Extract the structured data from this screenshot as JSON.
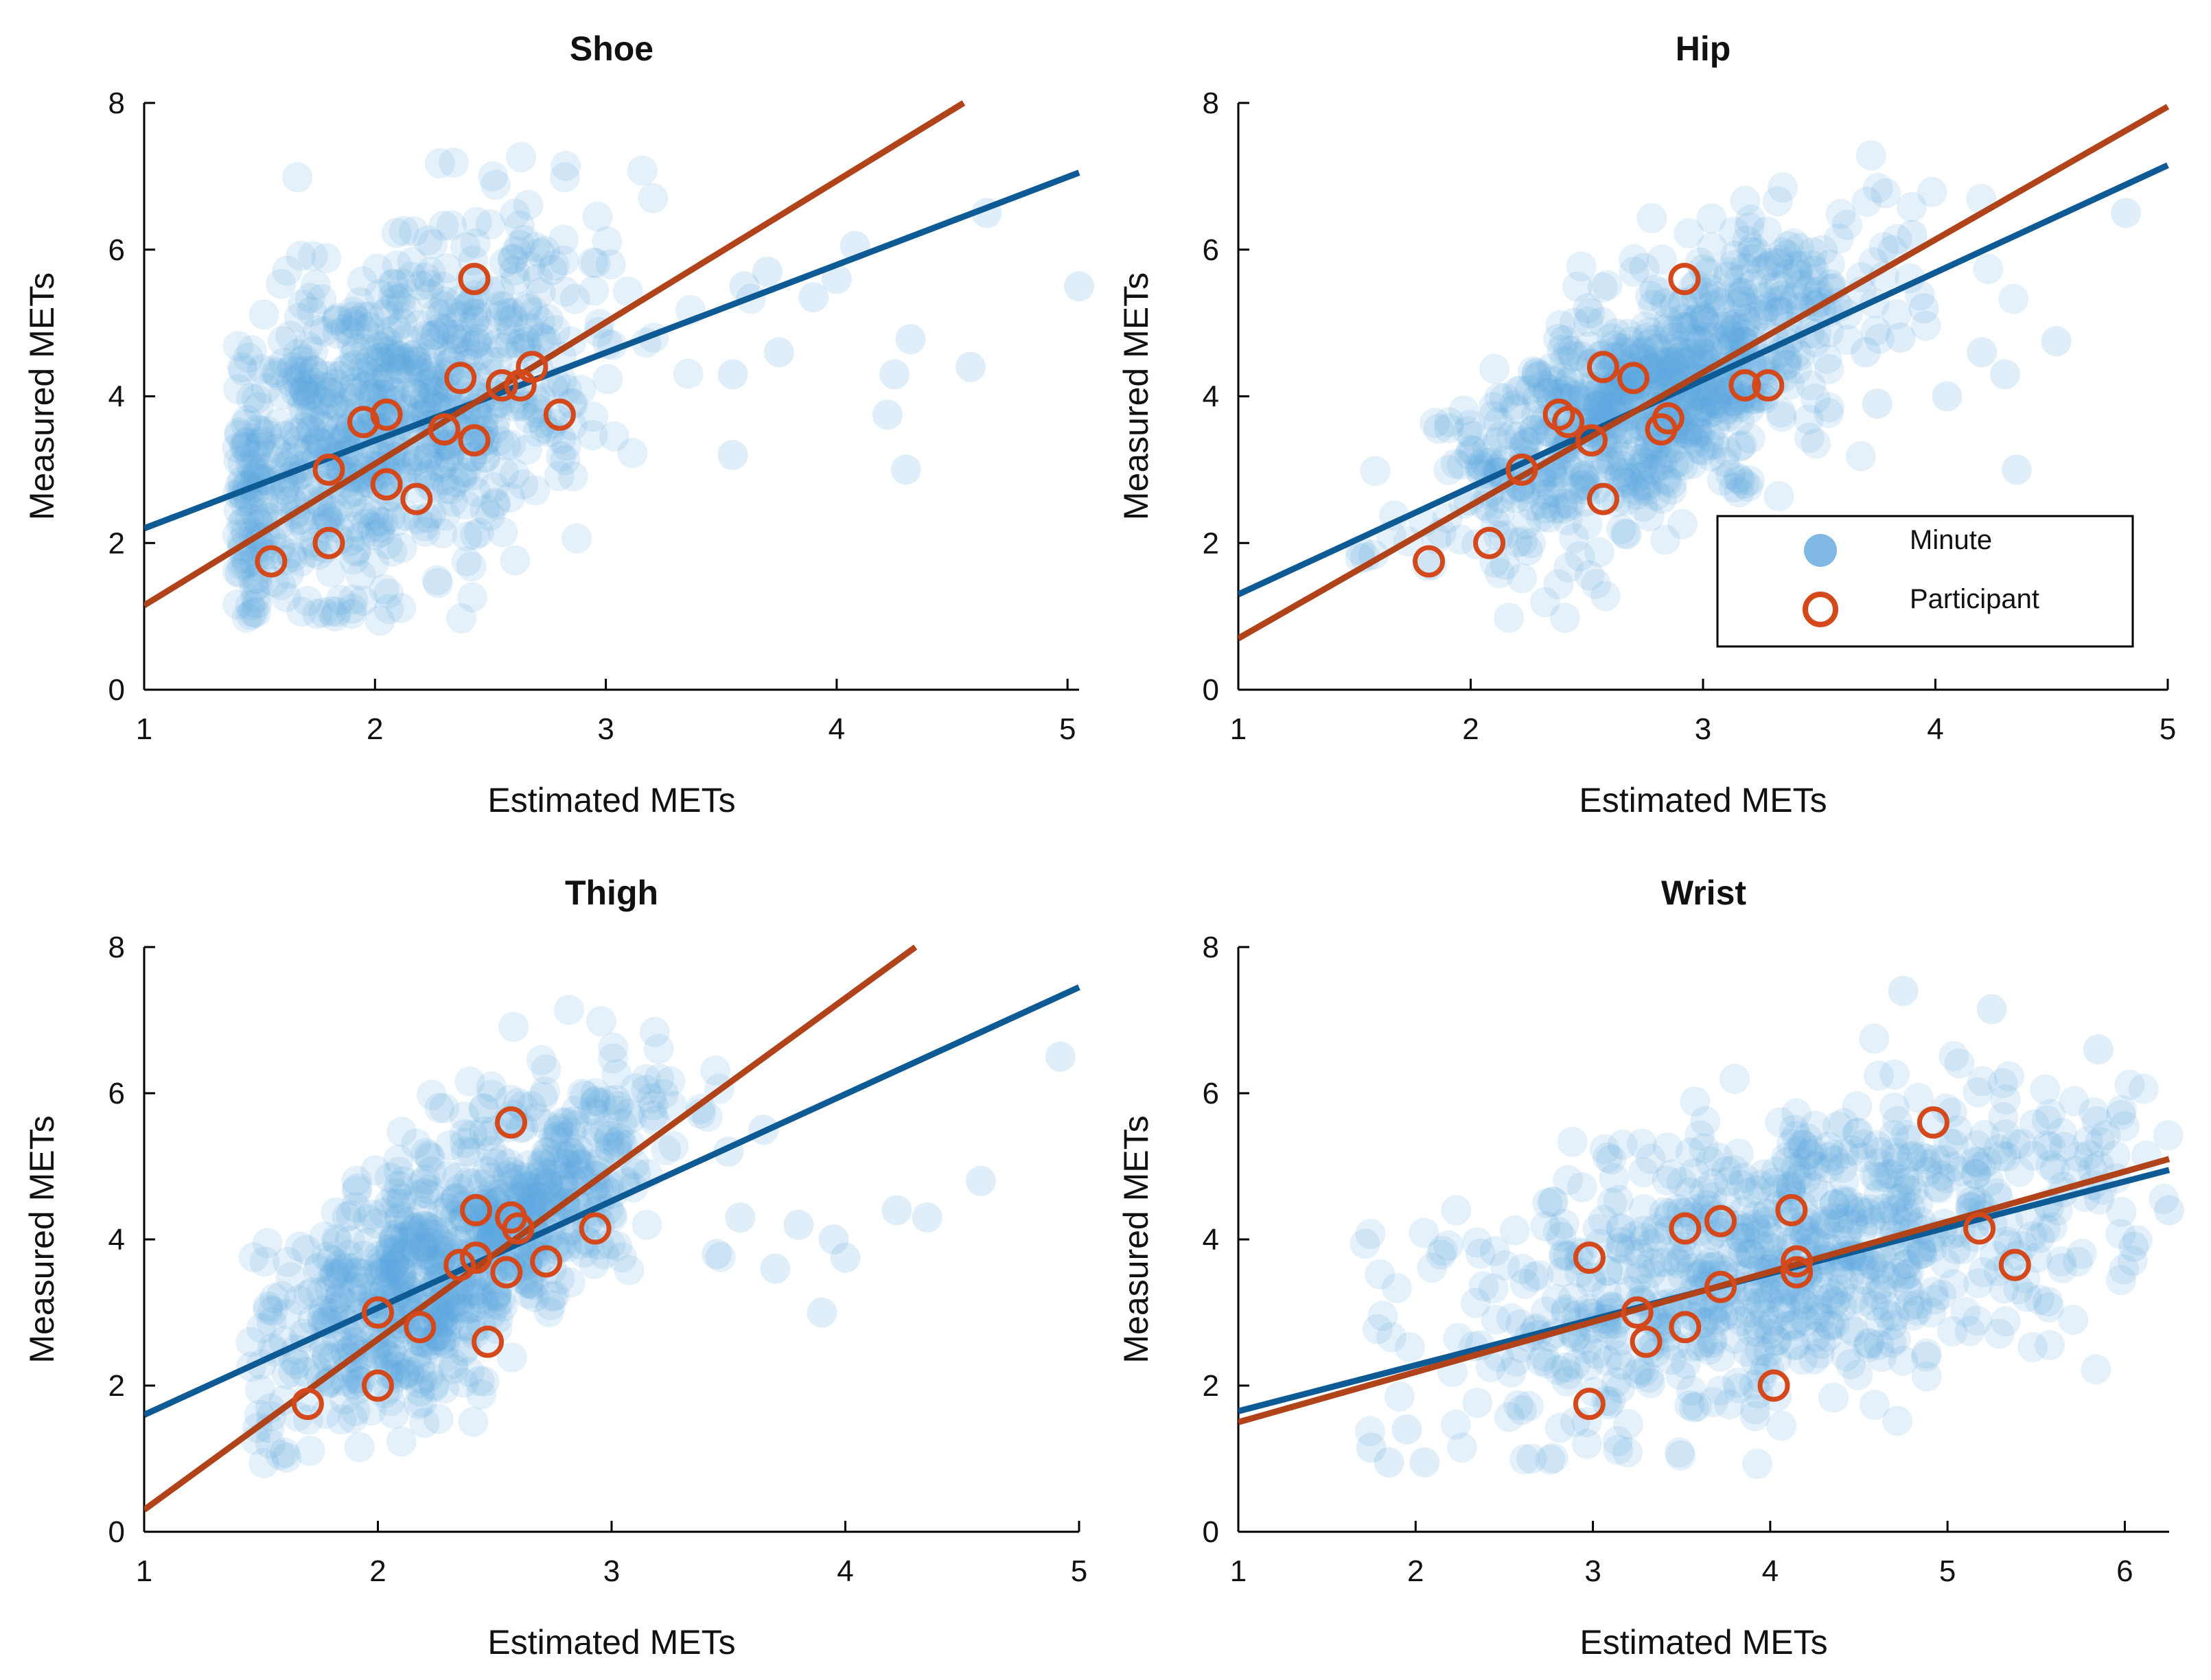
{
  "chart_data": [
    {
      "type": "scatter",
      "title": "Shoe",
      "xlabel": "Estimated METs",
      "ylabel": "Measured METs",
      "xlim": [
        1,
        5.05
      ],
      "ylim": [
        0,
        8
      ],
      "xticks": [
        1,
        2,
        3,
        4,
        5
      ],
      "yticks": [
        0,
        2,
        4,
        6,
        8
      ],
      "xtick_labels": [
        "1",
        "2",
        "3",
        "4",
        "5"
      ],
      "ytick_labels": [
        "0",
        "2",
        "4",
        "6",
        "8"
      ],
      "grid": false,
      "cloud": {
        "cx": 2.05,
        "cy": 3.7,
        "sx": 0.45,
        "sy": 1.15,
        "slope": 1.2,
        "n": 820,
        "xmin": 1.4,
        "seed": 11
      },
      "outliers": [
        [
          4.65,
          6.5
        ],
        [
          4.58,
          4.4
        ],
        [
          4.25,
          4.3
        ],
        [
          4.3,
          3.0
        ],
        [
          4.22,
          3.75
        ],
        [
          4.32,
          4.78
        ],
        [
          4.08,
          6.05
        ],
        [
          4.0,
          5.6
        ],
        [
          5.05,
          5.5
        ],
        [
          3.7,
          5.7
        ],
        [
          3.55,
          4.3
        ],
        [
          3.6,
          5.5
        ],
        [
          3.55,
          3.2
        ],
        [
          3.75,
          4.6
        ],
        [
          3.9,
          5.35
        ]
      ],
      "series": [
        {
          "name": "Minute fit",
          "line": [
            [
              1,
              2.2
            ],
            [
              5.05,
              7.05
            ]
          ]
        },
        {
          "name": "Participant fit",
          "line": [
            [
              1,
              1.15
            ],
            [
              4.55,
              8.0
            ]
          ]
        },
        {
          "name": "Participant",
          "points": [
            [
              1.55,
              1.75
            ],
            [
              1.8,
              2.0
            ],
            [
              1.8,
              3.0
            ],
            [
              1.95,
              3.65
            ],
            [
              2.05,
              3.75
            ],
            [
              2.05,
              2.8
            ],
            [
              2.18,
              2.6
            ],
            [
              2.3,
              3.55
            ],
            [
              2.37,
              4.25
            ],
            [
              2.43,
              3.4
            ],
            [
              2.43,
              5.6
            ],
            [
              2.55,
              4.15
            ],
            [
              2.63,
              4.15
            ],
            [
              2.68,
              4.4
            ],
            [
              2.8,
              3.75
            ]
          ]
        }
      ]
    },
    {
      "type": "scatter",
      "title": "Hip",
      "xlabel": "Estimated METs",
      "ylabel": "Measured METs",
      "xlim": [
        1,
        5
      ],
      "ylim": [
        0,
        8
      ],
      "xticks": [
        1,
        2,
        3,
        4,
        5
      ],
      "yticks": [
        0,
        2,
        4,
        6,
        8
      ],
      "xtick_labels": [
        "1",
        "2",
        "3",
        "4",
        "5"
      ],
      "ytick_labels": [
        "0",
        "2",
        "4",
        "6",
        "8"
      ],
      "grid": false,
      "cloud": {
        "cx": 2.8,
        "cy": 4.0,
        "sx": 0.45,
        "sy": 0.8,
        "slope": 1.6,
        "n": 820,
        "xmin": 1.5,
        "seed": 23
      },
      "outliers": [
        [
          4.82,
          6.5
        ],
        [
          4.52,
          4.75
        ],
        [
          4.35,
          3.0
        ],
        [
          4.3,
          4.3
        ],
        [
          4.2,
          4.6
        ],
        [
          4.05,
          4.0
        ],
        [
          3.95,
          5.2
        ],
        [
          3.85,
          4.8
        ],
        [
          3.7,
          4.6
        ],
        [
          3.75,
          3.9
        ],
        [
          3.9,
          6.2
        ]
      ],
      "series": [
        {
          "name": "Minute fit",
          "line": [
            [
              1,
              1.3
            ],
            [
              5,
              7.15
            ]
          ]
        },
        {
          "name": "Participant fit",
          "line": [
            [
              1,
              0.7
            ],
            [
              5,
              7.95
            ]
          ]
        },
        {
          "name": "Participant",
          "points": [
            [
              1.82,
              1.75
            ],
            [
              2.08,
              2.0
            ],
            [
              2.22,
              3.0
            ],
            [
              2.38,
              3.75
            ],
            [
              2.42,
              3.65
            ],
            [
              2.52,
              3.4
            ],
            [
              2.57,
              2.6
            ],
            [
              2.57,
              4.4
            ],
            [
              2.7,
              4.25
            ],
            [
              2.82,
              3.55
            ],
            [
              2.85,
              3.7
            ],
            [
              2.92,
              5.6
            ],
            [
              3.18,
              4.15
            ],
            [
              3.28,
              4.15
            ]
          ]
        }
      ],
      "legend": {
        "position": "bottom-right",
        "entries": [
          "Minute",
          "Participant"
        ]
      }
    },
    {
      "type": "scatter",
      "title": "Thigh",
      "xlabel": "Estimated METs",
      "ylabel": "Measured METs",
      "xlim": [
        1,
        5
      ],
      "ylim": [
        0,
        8
      ],
      "xticks": [
        1,
        2,
        3,
        4,
        5
      ],
      "yticks": [
        0,
        2,
        4,
        6,
        8
      ],
      "xtick_labels": [
        "1",
        "2",
        "3",
        "4",
        "5"
      ],
      "ytick_labels": [
        "0",
        "2",
        "4",
        "6",
        "8"
      ],
      "grid": false,
      "cloud": {
        "cx": 2.35,
        "cy": 3.9,
        "sx": 0.4,
        "sy": 0.85,
        "slope": 1.9,
        "n": 820,
        "xmin": 1.45,
        "seed": 37
      },
      "outliers": [
        [
          4.92,
          6.5
        ],
        [
          4.58,
          4.8
        ],
        [
          4.35,
          4.3
        ],
        [
          4.22,
          4.4
        ],
        [
          4.0,
          3.75
        ],
        [
          3.95,
          4.0
        ],
        [
          3.9,
          3.0
        ],
        [
          3.8,
          4.2
        ],
        [
          3.7,
          3.6
        ],
        [
          3.65,
          5.5
        ],
        [
          3.55,
          4.3
        ],
        [
          3.45,
          3.8
        ],
        [
          3.5,
          5.2
        ]
      ],
      "series": [
        {
          "name": "Minute fit",
          "line": [
            [
              1,
              1.6
            ],
            [
              5,
              7.45
            ]
          ]
        },
        {
          "name": "Participant fit",
          "line": [
            [
              1,
              0.3
            ],
            [
              4.3,
              8.0
            ]
          ]
        },
        {
          "name": "Participant",
          "points": [
            [
              1.7,
              1.75
            ],
            [
              2.0,
              2.0
            ],
            [
              2.0,
              3.0
            ],
            [
              2.18,
              2.8
            ],
            [
              2.35,
              3.65
            ],
            [
              2.42,
              3.75
            ],
            [
              2.42,
              4.4
            ],
            [
              2.47,
              2.6
            ],
            [
              2.55,
              3.55
            ],
            [
              2.57,
              4.3
            ],
            [
              2.6,
              4.15
            ],
            [
              2.57,
              5.6
            ],
            [
              2.72,
              3.7
            ],
            [
              2.93,
              4.15
            ]
          ]
        }
      ]
    },
    {
      "type": "scatter",
      "title": "Wrist",
      "xlabel": "Estimated METs",
      "ylabel": "Measured METs",
      "xlim": [
        1,
        6.25
      ],
      "ylim": [
        0,
        8
      ],
      "xticks": [
        1,
        2,
        3,
        4,
        5,
        6
      ],
      "yticks": [
        0,
        2,
        4,
        6,
        8
      ],
      "xtick_labels": [
        "1",
        "2",
        "3",
        "4",
        "5",
        "6"
      ],
      "ytick_labels": [
        "0",
        "2",
        "4",
        "6",
        "8"
      ],
      "grid": false,
      "cloud": {
        "cx": 4.1,
        "cy": 3.8,
        "sx": 0.95,
        "sy": 1.0,
        "slope": 0.55,
        "n": 820,
        "xmin": 1.7,
        "seed": 51
      },
      "outliers": [
        [
          1.75,
          1.15
        ],
        [
          1.85,
          0.95
        ],
        [
          1.95,
          1.4
        ],
        [
          2.05,
          0.95
        ],
        [
          6.25,
          4.4
        ],
        [
          6.05,
          3.9
        ],
        [
          5.85,
          6.6
        ],
        [
          4.75,
          7.4
        ],
        [
          5.25,
          7.15
        ]
      ],
      "series": [
        {
          "name": "Minute fit",
          "line": [
            [
              1,
              1.65
            ],
            [
              6.25,
              4.95
            ]
          ]
        },
        {
          "name": "Participant fit",
          "line": [
            [
              1,
              1.5
            ],
            [
              6.25,
              5.1
            ]
          ]
        },
        {
          "name": "Participant",
          "points": [
            [
              2.98,
              1.75
            ],
            [
              2.98,
              3.75
            ],
            [
              3.25,
              3.0
            ],
            [
              3.3,
              2.6
            ],
            [
              3.52,
              2.8
            ],
            [
              3.52,
              4.15
            ],
            [
              3.72,
              3.35
            ],
            [
              3.72,
              4.25
            ],
            [
              4.02,
              2.0
            ],
            [
              4.12,
              4.4
            ],
            [
              4.15,
              3.55
            ],
            [
              4.15,
              3.7
            ],
            [
              4.92,
              5.6
            ],
            [
              5.18,
              4.15
            ],
            [
              5.38,
              3.65
            ]
          ]
        }
      ]
    }
  ],
  "colors": {
    "minute_fill": "#5fa8dd",
    "minute_legend": "#7fb8e3",
    "minute_line": "#0d5a95",
    "participant_marker": "#d4491c",
    "participant_line": "#b1431a"
  }
}
